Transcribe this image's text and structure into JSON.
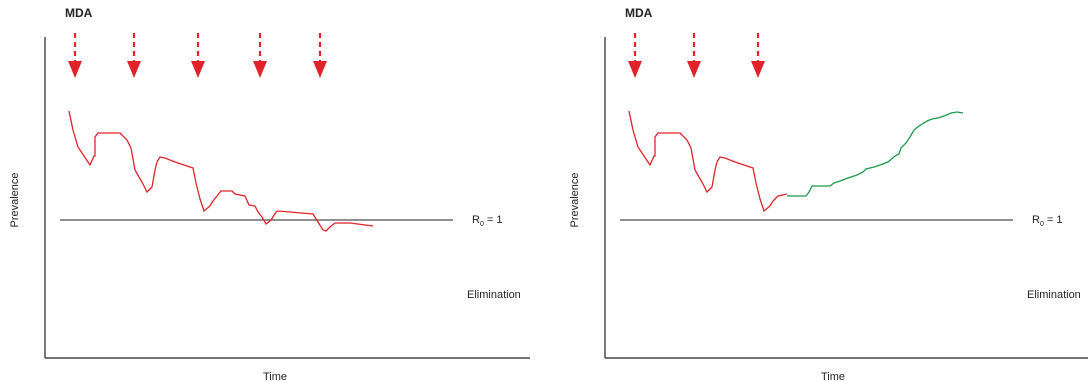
{
  "colors": {
    "arrow": "#e2232a",
    "mda_curve": "#e2232a",
    "rebound_curve": "#1a9a4a",
    "axis": "#222222",
    "threshold": "#222222"
  },
  "panels": [
    {
      "mda_label": "MDA",
      "x_axis_label": "Time",
      "y_axis_label": "Prevalence",
      "threshold_label_main": "R",
      "threshold_label_sub": "0",
      "threshold_label_rest": " = 1",
      "elimination_label": "Elimination",
      "mda_rounds": 5,
      "curve": "declines below threshold"
    },
    {
      "mda_label": "MDA",
      "x_axis_label": "Time",
      "y_axis_label": "Prevalence",
      "threshold_label_main": "R",
      "threshold_label_sub": "0",
      "threshold_label_rest": " = 1",
      "elimination_label": "Elimination",
      "mda_rounds": 3,
      "curve": "rebounds after MDA stops"
    }
  ]
}
